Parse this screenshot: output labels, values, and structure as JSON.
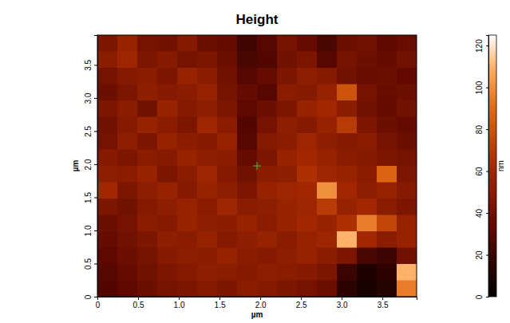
{
  "chart_data": {
    "type": "heatmap",
    "title": "Height",
    "x_label": "µm",
    "y_label": "µm",
    "xlim": [
      0,
      3.92
    ],
    "ylim": [
      0,
      3.95
    ],
    "xticks": [
      0,
      0.5,
      {
        "value": 1,
        "label": "1.0"
      },
      1.5,
      {
        "value": 2,
        "label": "2.0"
      },
      2.5,
      {
        "value": 3,
        "label": "3.0"
      },
      3.5
    ],
    "yticks": [
      0,
      0.5,
      {
        "value": 1,
        "label": "1.0"
      },
      1.5,
      {
        "value": 2,
        "label": "2.0"
      },
      2.5,
      {
        "value": 3,
        "label": "3.0"
      },
      3.5
    ],
    "z": [
      [
        45,
        55,
        42,
        40,
        48,
        38,
        35,
        22,
        30,
        42,
        35,
        25,
        38,
        40,
        32,
        36
      ],
      [
        50,
        58,
        45,
        48,
        42,
        45,
        38,
        25,
        28,
        40,
        45,
        30,
        42,
        38,
        35,
        40
      ],
      [
        42,
        48,
        50,
        45,
        55,
        50,
        40,
        30,
        35,
        45,
        52,
        48,
        40,
        36,
        38,
        34
      ],
      [
        38,
        45,
        52,
        48,
        50,
        55,
        42,
        35,
        30,
        50,
        48,
        55,
        80,
        42,
        36,
        38
      ],
      [
        45,
        50,
        40,
        55,
        48,
        52,
        45,
        32,
        38,
        45,
        55,
        60,
        50,
        40,
        35,
        40
      ],
      [
        40,
        48,
        55,
        50,
        45,
        58,
        50,
        28,
        42,
        52,
        48,
        55,
        70,
        45,
        38,
        35
      ],
      [
        42,
        52,
        45,
        55,
        50,
        48,
        55,
        30,
        48,
        50,
        58,
        52,
        48,
        50,
        42,
        38
      ],
      [
        48,
        45,
        50,
        48,
        55,
        52,
        50,
        35,
        45,
        55,
        60,
        55,
        50,
        48,
        45,
        42
      ],
      [
        52,
        50,
        55,
        45,
        50,
        58,
        48,
        40,
        50,
        52,
        65,
        58,
        55,
        50,
        88,
        45
      ],
      [
        60,
        45,
        52,
        55,
        48,
        55,
        52,
        45,
        55,
        58,
        60,
        100,
        60,
        52,
        55,
        48
      ],
      [
        45,
        40,
        48,
        52,
        55,
        50,
        58,
        50,
        52,
        55,
        58,
        70,
        55,
        60,
        50,
        45
      ],
      [
        38,
        42,
        50,
        48,
        55,
        52,
        50,
        55,
        50,
        55,
        60,
        55,
        65,
        95,
        75,
        55
      ],
      [
        35,
        40,
        45,
        52,
        50,
        55,
        48,
        52,
        55,
        50,
        55,
        58,
        110,
        60,
        50,
        55
      ],
      [
        32,
        38,
        42,
        48,
        52,
        50,
        55,
        50,
        48,
        52,
        55,
        50,
        45,
        25,
        20,
        40
      ],
      [
        30,
        35,
        40,
        45,
        48,
        52,
        50,
        48,
        52,
        50,
        48,
        45,
        20,
        10,
        15,
        110
      ],
      [
        28,
        32,
        38,
        42,
        45,
        48,
        45,
        50,
        48,
        45,
        42,
        38,
        15,
        8,
        12,
        95
      ]
    ],
    "colorbar": {
      "label": "nm",
      "range": [
        0,
        125
      ],
      "ticks": [
        0,
        20,
        40,
        60,
        80,
        100,
        120
      ]
    }
  }
}
